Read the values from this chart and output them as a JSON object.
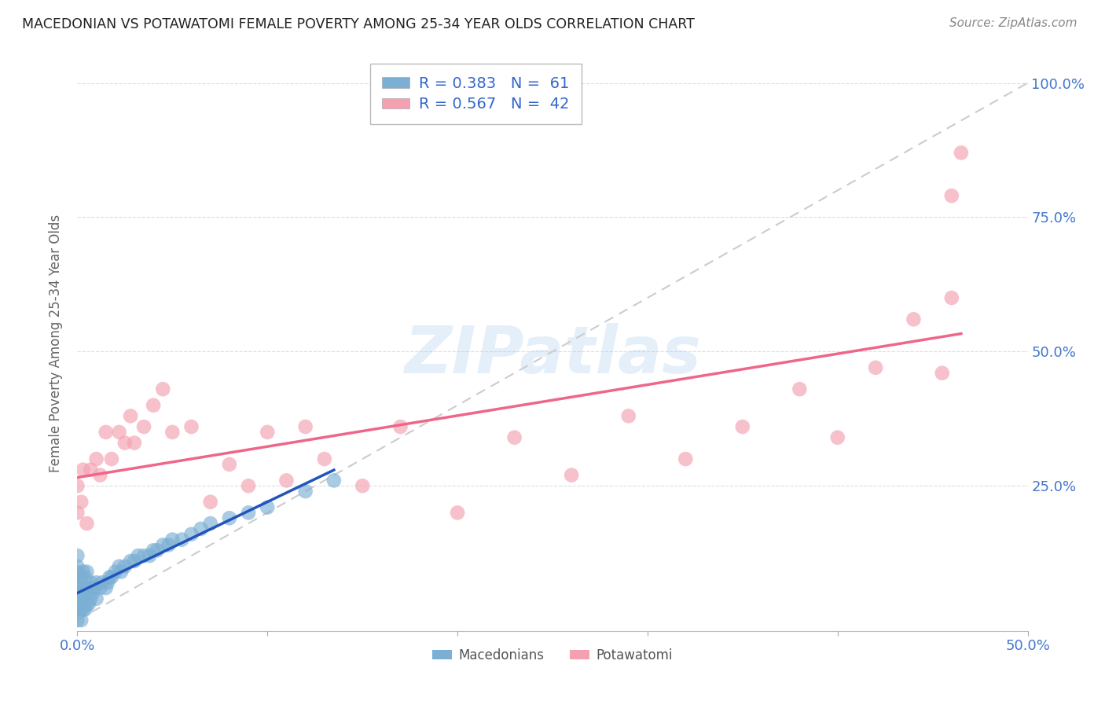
{
  "title": "MACEDONIAN VS POTAWATOMI FEMALE POVERTY AMONG 25-34 YEAR OLDS CORRELATION CHART",
  "source": "Source: ZipAtlas.com",
  "ylabel": "Female Poverty Among 25-34 Year Olds",
  "xlim": [
    0.0,
    0.5
  ],
  "ylim": [
    -0.02,
    1.05
  ],
  "x_tick_vals": [
    0.0,
    0.1,
    0.2,
    0.3,
    0.4,
    0.5
  ],
  "x_tick_labels": [
    "0.0%",
    "",
    "",
    "",
    "",
    "50.0%"
  ],
  "y_tick_vals": [
    0.0,
    0.25,
    0.5,
    0.75,
    1.0
  ],
  "y_tick_labels": [
    "",
    "25.0%",
    "50.0%",
    "75.0%",
    "100.0%"
  ],
  "legend_r1": "R = 0.383   N =  61",
  "legend_r2": "R = 0.567   N =  42",
  "legend_mac": "Macedonians",
  "legend_pot": "Potawatomi",
  "mac_color": "#7BAFD4",
  "pot_color": "#F4A0B0",
  "mac_line_color": "#2255BB",
  "pot_line_color": "#EE6688",
  "diag_color": "#CCCCCC",
  "watermark": "ZIPatlas",
  "mac_x": [
    0.0,
    0.0,
    0.0,
    0.0,
    0.0,
    0.0,
    0.0,
    0.0,
    0.0,
    0.0,
    0.002,
    0.002,
    0.002,
    0.002,
    0.003,
    0.003,
    0.003,
    0.003,
    0.004,
    0.004,
    0.004,
    0.005,
    0.005,
    0.005,
    0.006,
    0.006,
    0.007,
    0.007,
    0.008,
    0.009,
    0.01,
    0.01,
    0.012,
    0.013,
    0.015,
    0.016,
    0.017,
    0.018,
    0.02,
    0.022,
    0.023,
    0.025,
    0.028,
    0.03,
    0.032,
    0.035,
    0.038,
    0.04,
    0.042,
    0.045,
    0.048,
    0.05,
    0.055,
    0.06,
    0.065,
    0.07,
    0.08,
    0.09,
    0.1,
    0.12,
    0.135
  ],
  "mac_y": [
    0.0,
    0.02,
    0.03,
    0.05,
    0.06,
    0.07,
    0.08,
    0.09,
    0.1,
    0.12,
    0.0,
    0.02,
    0.04,
    0.08,
    0.02,
    0.04,
    0.06,
    0.09,
    0.02,
    0.05,
    0.08,
    0.03,
    0.06,
    0.09,
    0.03,
    0.06,
    0.04,
    0.07,
    0.05,
    0.06,
    0.04,
    0.07,
    0.06,
    0.07,
    0.06,
    0.07,
    0.08,
    0.08,
    0.09,
    0.1,
    0.09,
    0.1,
    0.11,
    0.11,
    0.12,
    0.12,
    0.12,
    0.13,
    0.13,
    0.14,
    0.14,
    0.15,
    0.15,
    0.16,
    0.17,
    0.18,
    0.19,
    0.2,
    0.21,
    0.24,
    0.26
  ],
  "pot_x": [
    0.0,
    0.0,
    0.002,
    0.003,
    0.005,
    0.007,
    0.01,
    0.012,
    0.015,
    0.018,
    0.022,
    0.025,
    0.028,
    0.03,
    0.035,
    0.04,
    0.045,
    0.05,
    0.06,
    0.07,
    0.08,
    0.09,
    0.1,
    0.11,
    0.12,
    0.13,
    0.15,
    0.17,
    0.2,
    0.23,
    0.26,
    0.29,
    0.32,
    0.35,
    0.38,
    0.4,
    0.42,
    0.44,
    0.455,
    0.46,
    0.46,
    0.465
  ],
  "pot_y": [
    0.2,
    0.25,
    0.22,
    0.28,
    0.18,
    0.28,
    0.3,
    0.27,
    0.35,
    0.3,
    0.35,
    0.33,
    0.38,
    0.33,
    0.36,
    0.4,
    0.43,
    0.35,
    0.36,
    0.22,
    0.29,
    0.25,
    0.35,
    0.26,
    0.36,
    0.3,
    0.25,
    0.36,
    0.2,
    0.34,
    0.27,
    0.38,
    0.3,
    0.36,
    0.43,
    0.34,
    0.47,
    0.56,
    0.46,
    0.6,
    0.79,
    0.87
  ]
}
